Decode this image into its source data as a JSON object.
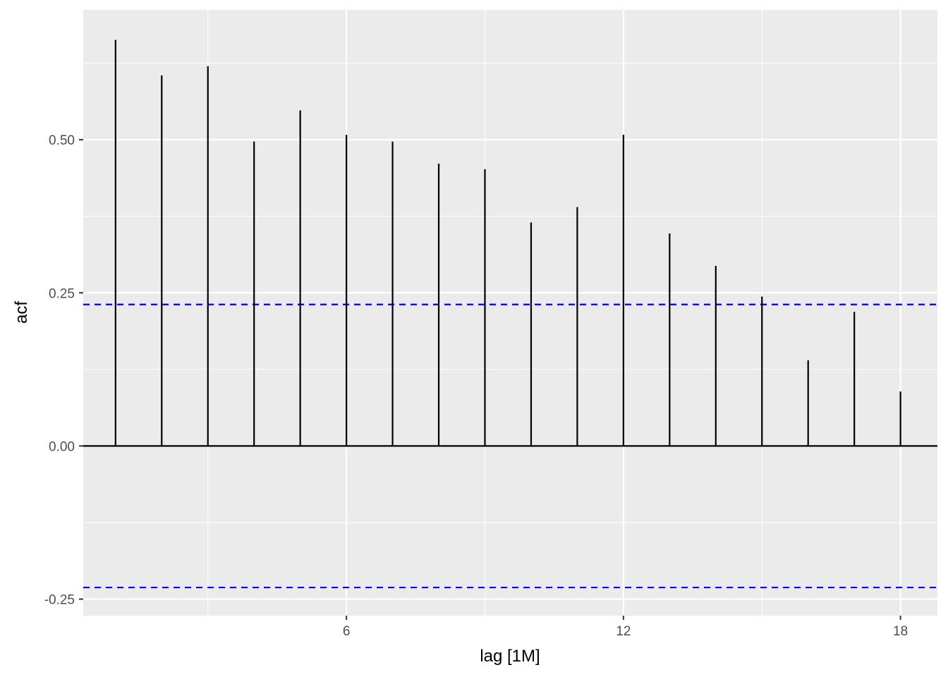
{
  "chart_data": {
    "type": "bar",
    "subtype": "acf-lollipop",
    "xlabel": "lag [1M]",
    "ylabel": "acf",
    "x": [
      1,
      2,
      3,
      4,
      5,
      6,
      7,
      8,
      9,
      10,
      11,
      12,
      13,
      14,
      15,
      16,
      17,
      18
    ],
    "values": [
      0.663,
      0.605,
      0.62,
      0.497,
      0.548,
      0.508,
      0.497,
      0.461,
      0.452,
      0.365,
      0.39,
      0.508,
      0.347,
      0.294,
      0.244,
      0.14,
      0.219,
      0.089
    ],
    "confidence_bounds": [
      0.231,
      -0.231
    ],
    "xlim": [
      0.3,
      18.8
    ],
    "ylim": [
      -0.277,
      0.712
    ],
    "x_ticks": [
      6,
      12,
      18
    ],
    "x_tick_labels": [
      "6",
      "12",
      "18"
    ],
    "y_ticks": [
      -0.25,
      0,
      0.25,
      0.5
    ],
    "y_tick_labels": [
      "-0.25",
      "0.00",
      "0.25",
      "0.50"
    ],
    "grid": true,
    "colors": {
      "panel": "#ebebeb",
      "grid": "#ffffff",
      "stem": "#000000",
      "bounds": "#0000ff",
      "tick_text": "#4d4d4d"
    }
  }
}
